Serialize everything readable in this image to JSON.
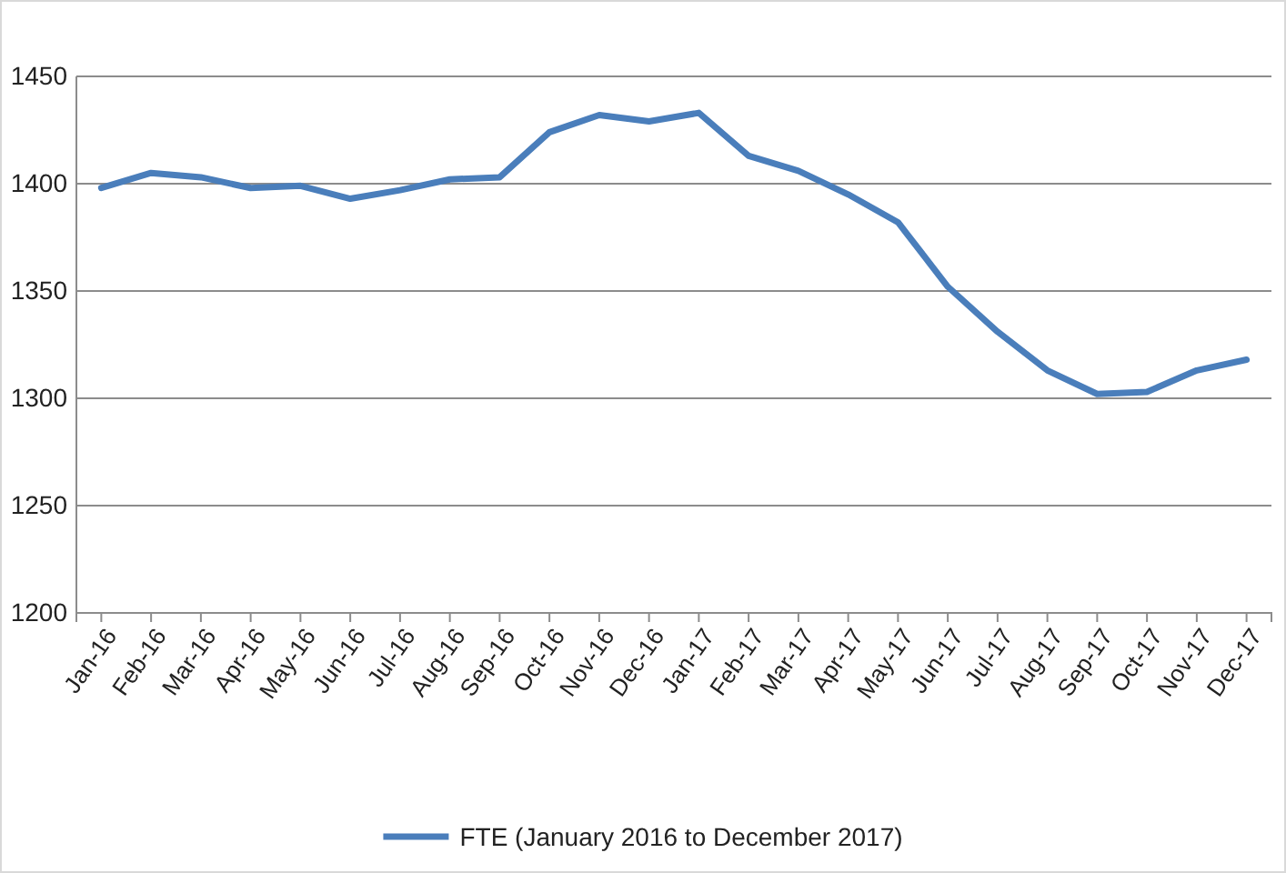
{
  "chart_data": {
    "type": "line",
    "categories": [
      "Jan-16",
      "Feb-16",
      "Mar-16",
      "Apr-16",
      "May-16",
      "Jun-16",
      "Jul-16",
      "Aug-16",
      "Sep-16",
      "Oct-16",
      "Nov-16",
      "Dec-16",
      "Jan-17",
      "Feb-17",
      "Mar-17",
      "Apr-17",
      "May-17",
      "Jun-17",
      "Jul-17",
      "Aug-17",
      "Sep-17",
      "Oct-17",
      "Nov-17",
      "Dec-17"
    ],
    "series": [
      {
        "name": "FTE (January 2016 to December 2017)",
        "color": "#4a7ebb",
        "values": [
          1398,
          1405,
          1403,
          1398,
          1399,
          1393,
          1397,
          1402,
          1403,
          1424,
          1432,
          1429,
          1433,
          1413,
          1406,
          1395,
          1382,
          1352,
          1331,
          1313,
          1302,
          1303,
          1313,
          1318
        ]
      }
    ],
    "ylim": [
      1200,
      1450
    ],
    "yticks": [
      1200,
      1250,
      1300,
      1350,
      1400,
      1450
    ],
    "grid": "y",
    "legend": "bottom",
    "marker": "none",
    "line_style": "solid"
  }
}
